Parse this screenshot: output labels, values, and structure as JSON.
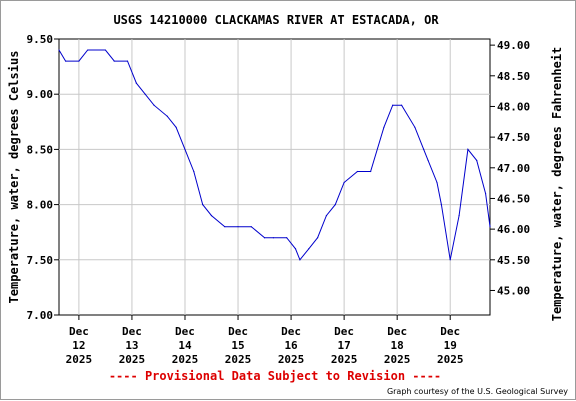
{
  "chart_data": {
    "type": "line",
    "title": "USGS 14210000 CLACKAMAS RIVER AT ESTACADA, OR",
    "ylabel": "Temperature, water, degrees Celsius",
    "y2label": "Temperature, water, degrees Fahrenheit",
    "ylim": [
      7.0,
      9.5
    ],
    "y_ticks": [
      "9.50",
      "9.00",
      "8.50",
      "8.00",
      "7.50",
      "7.00"
    ],
    "y2lim": [
      44.6,
      49.1
    ],
    "y2_ticks": [
      "49.00",
      "48.50",
      "48.00",
      "47.50",
      "47.00",
      "46.50",
      "46.00",
      "45.50",
      "45.00"
    ],
    "xlim": [
      "2025-12-11T15:00",
      "2025-12-19T18:00"
    ],
    "x_ticks": [
      {
        "month": "Dec",
        "day": "12",
        "year": "2025",
        "date": "2025-12-12"
      },
      {
        "month": "Dec",
        "day": "13",
        "year": "2025",
        "date": "2025-12-13"
      },
      {
        "month": "Dec",
        "day": "14",
        "year": "2025",
        "date": "2025-12-14"
      },
      {
        "month": "Dec",
        "day": "15",
        "year": "2025",
        "date": "2025-12-15"
      },
      {
        "month": "Dec",
        "day": "16",
        "year": "2025",
        "date": "2025-12-16"
      },
      {
        "month": "Dec",
        "day": "17",
        "year": "2025",
        "date": "2025-12-17"
      },
      {
        "month": "Dec",
        "day": "18",
        "year": "2025",
        "date": "2025-12-18"
      },
      {
        "month": "Dec",
        "day": "19",
        "year": "2025",
        "date": "2025-12-19"
      }
    ],
    "grid": true,
    "line_color": "#0000cc",
    "series": [
      {
        "x": [
          "2025-12-11T15:00",
          "2025-12-11T18:00",
          "2025-12-12T00:00",
          "2025-12-12T04:00",
          "2025-12-12T12:00",
          "2025-12-12T16:00",
          "2025-12-12T22:00",
          "2025-12-13T02:00",
          "2025-12-13T06:00",
          "2025-12-13T10:00",
          "2025-12-13T16:00",
          "2025-12-13T20:00",
          "2025-12-14T00:00",
          "2025-12-14T04:00",
          "2025-12-14T08:00",
          "2025-12-14T12:00",
          "2025-12-14T18:00",
          "2025-12-15T00:00",
          "2025-12-15T06:00",
          "2025-12-15T12:00",
          "2025-12-15T16:00",
          "2025-12-15T22:00",
          "2025-12-16T02:00",
          "2025-12-16T04:00",
          "2025-12-16T08:00",
          "2025-12-16T12:00",
          "2025-12-16T16:00",
          "2025-12-16T20:00",
          "2025-12-17T00:00",
          "2025-12-17T06:00",
          "2025-12-17T12:00",
          "2025-12-17T18:00",
          "2025-12-17T22:00",
          "2025-12-18T02:00",
          "2025-12-18T08:00",
          "2025-12-18T12:00",
          "2025-12-18T14:00",
          "2025-12-18T18:00",
          "2025-12-18T20:00",
          "2025-12-19T00:00",
          "2025-12-19T04:00",
          "2025-12-19T08:00",
          "2025-12-19T12:00",
          "2025-12-19T16:00",
          "2025-12-19T18:00"
        ],
        "values": [
          9.4,
          9.3,
          9.3,
          9.4,
          9.4,
          9.3,
          9.3,
          9.1,
          9.0,
          8.9,
          8.8,
          8.7,
          8.5,
          8.3,
          8.0,
          7.9,
          7.8,
          7.8,
          7.8,
          7.7,
          7.7,
          7.7,
          7.6,
          7.5,
          7.6,
          7.7,
          7.9,
          8.0,
          8.2,
          8.3,
          8.3,
          8.7,
          8.9,
          8.9,
          8.7,
          8.5,
          8.4,
          8.2,
          8.0,
          7.5,
          7.9,
          8.5,
          8.4,
          8.1,
          7.8
        ]
      }
    ],
    "footer_note": "---- Provisional Data Subject to Revision ----",
    "credit": "Graph courtesy of the U.S. Geological Survey"
  }
}
